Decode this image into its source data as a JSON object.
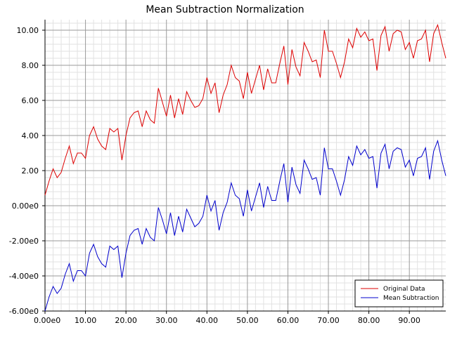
{
  "chart_data": {
    "type": "line",
    "title": "Mean Subtraction Normalization",
    "xlabel": "",
    "ylabel": "",
    "xlim": [
      0,
      99
    ],
    "ylim": [
      -6,
      10.6
    ],
    "grid": true,
    "legend_position": "bottom-right",
    "x_ticks": [
      {
        "value": 0,
        "label": "0.00e0"
      },
      {
        "value": 10,
        "label": "10.00"
      },
      {
        "value": 20,
        "label": "20.00"
      },
      {
        "value": 30,
        "label": "30.00"
      },
      {
        "value": 40,
        "label": "40.00"
      },
      {
        "value": 50,
        "label": "50.00"
      },
      {
        "value": 60,
        "label": "60.00"
      },
      {
        "value": 70,
        "label": "70.00"
      },
      {
        "value": 80,
        "label": "80.00"
      },
      {
        "value": 90,
        "label": "90.00"
      }
    ],
    "y_ticks": [
      {
        "value": 10,
        "label": "10.00"
      },
      {
        "value": 8,
        "label": "8.00"
      },
      {
        "value": 6,
        "label": "6.00"
      },
      {
        "value": 4,
        "label": "4.00"
      },
      {
        "value": 2,
        "label": "2.00"
      },
      {
        "value": 0,
        "label": "0.00e0"
      },
      {
        "value": -2,
        "label": "-2.00e0"
      },
      {
        "value": -4,
        "label": "-4.00e0"
      },
      {
        "value": -6,
        "label": "-6.00e0"
      }
    ],
    "series": [
      {
        "name": "Original Data",
        "color": "#dd0000",
        "values": [
          0.6,
          1.4,
          2.1,
          1.6,
          1.9,
          2.7,
          3.4,
          2.4,
          3.0,
          3.0,
          2.7,
          4.0,
          4.5,
          3.8,
          3.4,
          3.2,
          4.4,
          4.2,
          4.4,
          2.6,
          4.0,
          5.0,
          5.3,
          5.4,
          4.5,
          5.4,
          4.9,
          4.7,
          6.7,
          5.9,
          5.1,
          6.3,
          5.0,
          6.1,
          5.2,
          6.5,
          6.0,
          5.6,
          5.7,
          6.1,
          7.3,
          6.4,
          7.0,
          5.3,
          6.3,
          6.9,
          8.0,
          7.3,
          7.1,
          6.1,
          7.6,
          6.4,
          7.2,
          8.0,
          6.6,
          7.8,
          7.0,
          7.0,
          8.1,
          9.1,
          6.9,
          8.9,
          7.9,
          7.4,
          9.3,
          8.8,
          8.2,
          8.3,
          7.3,
          10.0,
          8.8,
          8.8,
          8.1,
          7.3,
          8.2,
          9.5,
          9.0,
          10.1,
          9.6,
          9.9,
          9.4,
          9.5,
          7.7,
          9.7,
          10.2,
          8.8,
          9.8,
          10.0,
          9.9,
          8.9,
          9.3,
          8.4,
          9.4,
          9.5,
          10.0,
          8.2,
          9.8,
          10.3,
          9.3,
          8.4
        ]
      },
      {
        "name": "Mean Subtraction",
        "color": "#0000cc",
        "values": [
          -6.0,
          -5.2,
          -4.6,
          -5.0,
          -4.7,
          -3.9,
          -3.3,
          -4.3,
          -3.7,
          -3.7,
          -4.0,
          -2.7,
          -2.2,
          -2.9,
          -3.3,
          -3.5,
          -2.3,
          -2.5,
          -2.3,
          -4.1,
          -2.7,
          -1.7,
          -1.4,
          -1.3,
          -2.2,
          -1.3,
          -1.8,
          -2.0,
          -0.1,
          -0.8,
          -1.6,
          -0.4,
          -1.7,
          -0.6,
          -1.5,
          -0.2,
          -0.7,
          -1.2,
          -1.0,
          -0.6,
          0.6,
          -0.3,
          0.3,
          -1.4,
          -0.4,
          0.2,
          1.3,
          0.6,
          0.4,
          -0.6,
          0.9,
          -0.3,
          0.5,
          1.3,
          -0.1,
          1.1,
          0.3,
          0.3,
          1.4,
          2.4,
          0.2,
          2.2,
          1.2,
          0.7,
          2.6,
          2.1,
          1.5,
          1.6,
          0.6,
          3.3,
          2.1,
          2.1,
          1.4,
          0.6,
          1.5,
          2.8,
          2.3,
          3.4,
          2.9,
          3.2,
          2.7,
          2.8,
          1.0,
          3.0,
          3.5,
          2.1,
          3.1,
          3.3,
          3.2,
          2.2,
          2.6,
          1.7,
          2.7,
          2.8,
          3.3,
          1.5,
          3.1,
          3.7,
          2.6,
          1.7
        ]
      }
    ]
  }
}
